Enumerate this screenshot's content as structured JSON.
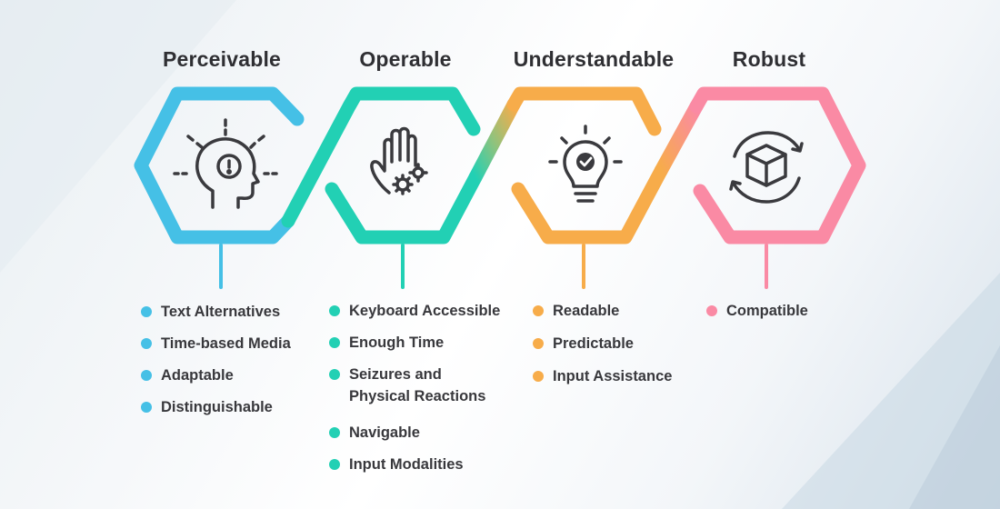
{
  "colors": {
    "perceivable": "#45c0e6",
    "operable": "#22d0b4",
    "understandable": "#f7ac4a",
    "robust": "#fa8aa4",
    "title_text": "#2f2f33",
    "icon_stroke": "#3a3a3e"
  },
  "pillars": [
    {
      "title": "Perceivable",
      "icon": "head-with-exclamation-icon",
      "items": [
        "Text Alternatives",
        "Time-based Media",
        "Adaptable",
        "Distinguishable"
      ]
    },
    {
      "title": "Operable",
      "icon": "hand-with-gears-icon",
      "items": [
        "Keyboard Accessible",
        "Enough Time",
        "Seizures and Physical Reactions",
        "Navigable",
        "Input Modalities"
      ]
    },
    {
      "title": "Understandable",
      "icon": "lightbulb-check-icon",
      "items": [
        "Readable",
        "Predictable",
        "Input Assistance"
      ]
    },
    {
      "title": "Robust",
      "icon": "cube-refresh-icon",
      "items": [
        "Compatible"
      ]
    }
  ]
}
